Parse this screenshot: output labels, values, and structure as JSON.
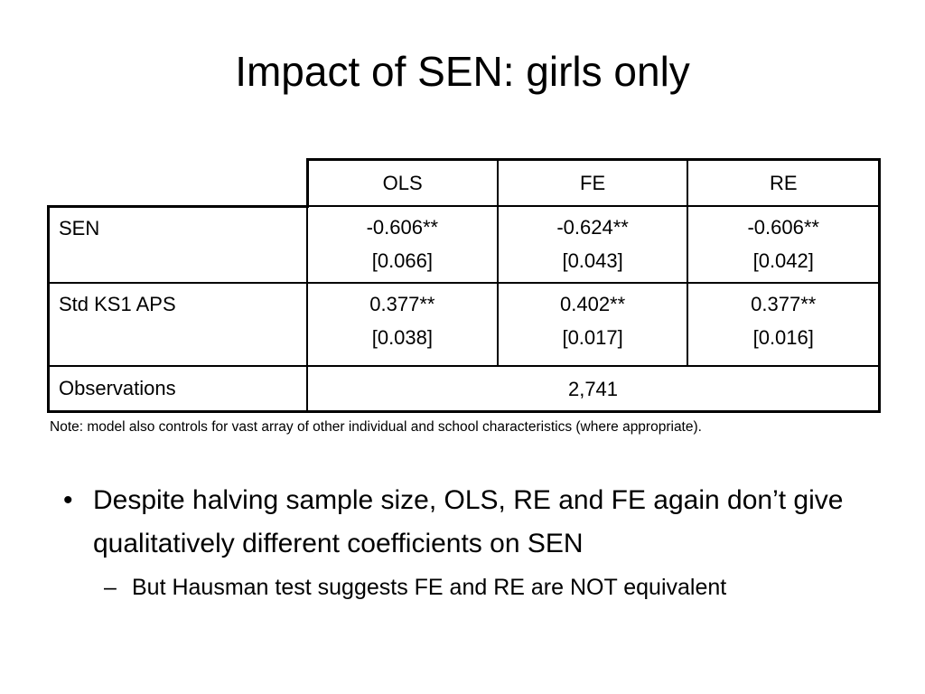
{
  "title": "Impact of SEN: girls only",
  "table": {
    "header": [
      "OLS",
      "FE",
      "RE"
    ],
    "rows": [
      {
        "label": "SEN",
        "cells": [
          {
            "coef": "-0.606**",
            "se": "[0.066]"
          },
          {
            "coef": "-0.624**",
            "se": "[0.043]"
          },
          {
            "coef": "-0.606**",
            "se": "[0.042]"
          }
        ]
      },
      {
        "label": "Std KS1 APS",
        "cells": [
          {
            "coef": "0.377**",
            "se": "[0.038]"
          },
          {
            "coef": "0.402**",
            "se": "[0.017]"
          },
          {
            "coef": "0.377**",
            "se": "[0.016]"
          }
        ]
      }
    ],
    "observations": {
      "label": "Observations",
      "value": "2,741"
    }
  },
  "note": "Note: model also controls for vast array of other individual and school characteristics (where appropriate).",
  "bullets": [
    {
      "text": "Despite halving sample size, OLS, RE and FE again don’t give qualitatively different coefficients on SEN",
      "sub": [
        "But Hausman test suggests FE and RE are NOT equivalent"
      ]
    }
  ]
}
